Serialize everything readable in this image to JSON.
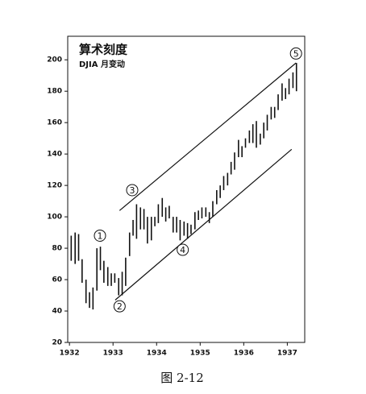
{
  "chart_data": {
    "type": "hilo",
    "title": "算术刻度",
    "subtitle": "DJIA 月变动",
    "caption": "图 2-12",
    "x": [
      1932.04,
      1932.13,
      1932.21,
      1932.29,
      1932.38,
      1932.46,
      1932.54,
      1932.63,
      1932.71,
      1932.79,
      1932.88,
      1932.96,
      1933.04,
      1933.13,
      1933.21,
      1933.29,
      1933.38,
      1933.46,
      1933.54,
      1933.63,
      1933.71,
      1933.79,
      1933.88,
      1933.96,
      1934.04,
      1934.13,
      1934.21,
      1934.29,
      1934.38,
      1934.46,
      1934.54,
      1934.63,
      1934.71,
      1934.79,
      1934.88,
      1934.96,
      1935.04,
      1935.13,
      1935.21,
      1935.29,
      1935.38,
      1935.46,
      1935.54,
      1935.63,
      1935.71,
      1935.79,
      1935.88,
      1935.96,
      1936.04,
      1936.13,
      1936.21,
      1936.29,
      1936.38,
      1936.46,
      1936.54,
      1936.63,
      1936.71,
      1936.79,
      1936.88,
      1936.96,
      1937.04,
      1937.13,
      1937.21
    ],
    "series": [
      {
        "name": "high",
        "values": [
          88,
          90,
          89,
          73,
          60,
          52,
          55,
          80,
          81,
          72,
          68,
          64,
          64,
          61,
          65,
          74,
          90,
          98,
          108,
          106,
          105,
          100,
          100,
          100,
          108,
          112,
          106,
          107,
          100,
          100,
          98,
          97,
          96,
          95,
          103,
          104,
          106,
          106,
          103,
          110,
          117,
          120,
          126,
          128,
          135,
          141,
          149,
          145,
          150,
          155,
          159,
          161,
          153,
          160,
          165,
          170,
          170,
          178,
          185,
          182,
          188,
          192,
          198
        ]
      },
      {
        "name": "low",
        "values": [
          72,
          70,
          72,
          58,
          45,
          42,
          41,
          53,
          66,
          58,
          56,
          56,
          58,
          50,
          50,
          56,
          75,
          88,
          86,
          92,
          92,
          83,
          85,
          94,
          96,
          100,
          97,
          99,
          90,
          90,
          85,
          88,
          86,
          89,
          92,
          98,
          99,
          100,
          96,
          100,
          108,
          112,
          117,
          120,
          127,
          130,
          138,
          138,
          144,
          147,
          147,
          144,
          146,
          150,
          155,
          162,
          163,
          168,
          174,
          175,
          178,
          182,
          180
        ]
      }
    ],
    "color": "#111111",
    "xlim": [
      1931.96,
      1937.4
    ],
    "xticks": [
      1932,
      1933,
      1934,
      1935,
      1936,
      1937
    ],
    "ylim": [
      20,
      215
    ],
    "yticks": [
      20,
      40,
      60,
      80,
      100,
      120,
      140,
      160,
      180,
      200
    ],
    "trend_lines": [
      {
        "x": [
          1933.15,
          1937.2
        ],
        "y": [
          104,
          198
        ]
      },
      {
        "x": [
          1933.05,
          1937.1
        ],
        "y": [
          47,
          143
        ]
      }
    ],
    "annotations": [
      {
        "label": "1",
        "x": 1932.7,
        "y": 88
      },
      {
        "label": "2",
        "x": 1933.15,
        "y": 43
      },
      {
        "label": "3",
        "x": 1933.44,
        "y": 117
      },
      {
        "label": "4",
        "x": 1934.6,
        "y": 79
      },
      {
        "label": "5",
        "x": 1937.2,
        "y": 204
      }
    ]
  }
}
